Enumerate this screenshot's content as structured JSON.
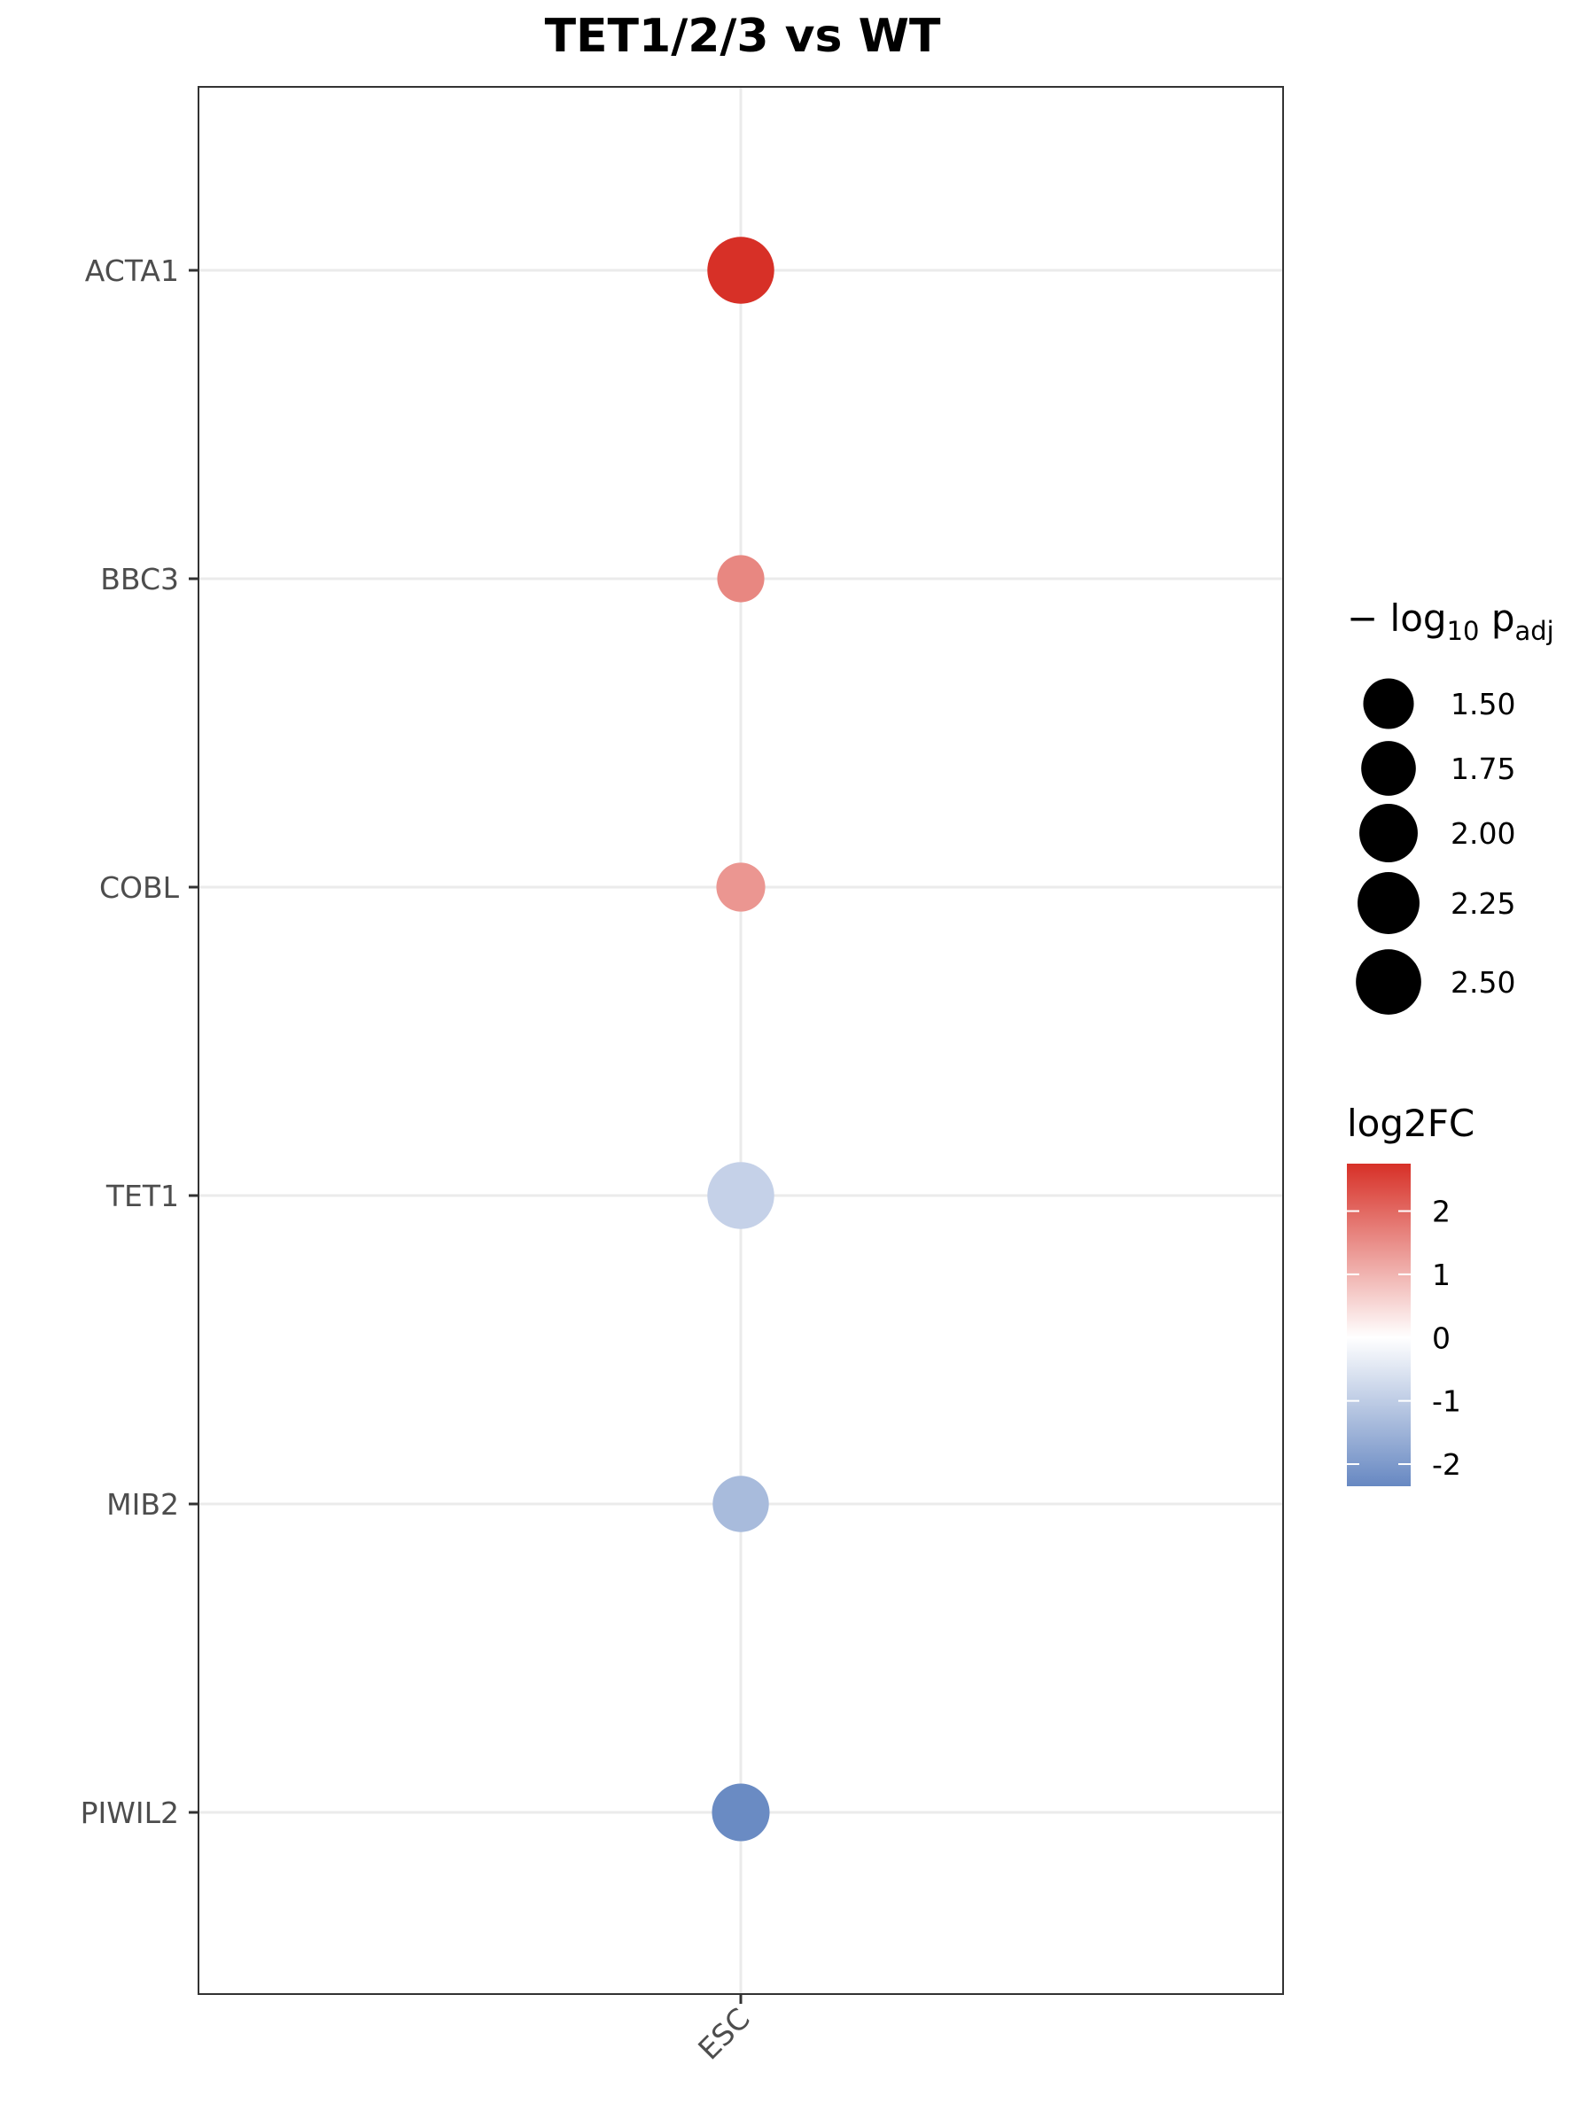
{
  "chart_data": {
    "type": "scatter",
    "title": "TET1/2/3 vs WT",
    "xlabel": "",
    "ylabel": "",
    "x_categories": [
      "ESC"
    ],
    "y_categories": [
      "ACTA1",
      "BBC3",
      "COBL",
      "TET1",
      "MIB2",
      "PIWIL2"
    ],
    "points": [
      {
        "gene": "ACTA1",
        "x": "ESC",
        "log2FC": 2.75,
        "neg_log10_padj": 2.62
      },
      {
        "gene": "BBC3",
        "x": "ESC",
        "log2FC": 1.6,
        "neg_log10_padj": 1.3
      },
      {
        "gene": "COBL",
        "x": "ESC",
        "log2FC": 1.4,
        "neg_log10_padj": 1.4
      },
      {
        "gene": "TET1",
        "x": "ESC",
        "log2FC": -0.9,
        "neg_log10_padj": 2.62
      },
      {
        "gene": "MIB2",
        "x": "ESC",
        "log2FC": -1.35,
        "neg_log10_padj": 1.85
      },
      {
        "gene": "PIWIL2",
        "x": "ESC",
        "log2FC": -2.3,
        "neg_log10_padj": 1.95
      }
    ],
    "grid": true,
    "legend_position": "right",
    "size_legend": {
      "title_prefix": "−",
      "title_main": "log",
      "title_sub1": "10",
      "title_mid": " p",
      "title_sub2": "adj",
      "breaks": [
        1.5,
        1.75,
        2.0,
        2.25,
        2.5
      ],
      "labels": [
        "1.50",
        "1.75",
        "2.00",
        "2.25",
        "2.50"
      ]
    },
    "color_legend": {
      "title": "log2FC",
      "breaks": [
        2,
        1,
        0,
        -1,
        -2
      ],
      "labels": [
        "2",
        "1",
        "0",
        "-1",
        "-2"
      ],
      "range": [
        -2.35,
        2.75
      ],
      "low_color": "#6788c2",
      "mid_color": "#ffffff",
      "high_color": "#d73027"
    }
  }
}
